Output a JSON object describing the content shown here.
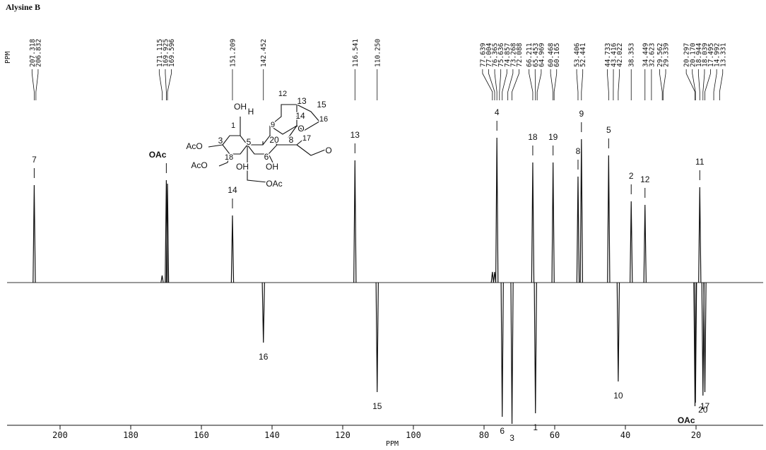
{
  "chart_data": {
    "type": "nmr-spectrum",
    "title": "Alysine B",
    "shift_header": "PPM",
    "xlabel": "PPM",
    "xlim": [
      215,
      1
    ],
    "xticks": [
      200,
      180,
      160,
      140,
      120,
      100,
      80,
      60,
      40,
      20
    ],
    "ylim": [
      -220,
      300
    ],
    "color": "#111111",
    "shift_labels": [
      207.318,
      206.832,
      171.115,
      169.925,
      169.596,
      151.209,
      142.452,
      116.541,
      {
        "value": 110.25,
        "label": "110.250"
      },
      77.639,
      77.004,
      76.365,
      75.636,
      74.857,
      73.268,
      72.088,
      66.211,
      65.453,
      64.969,
      60.468,
      60.165,
      53.406,
      52.441,
      44.733,
      43.416,
      42.022,
      38.353,
      34.449,
      32.623,
      29.562,
      29.339,
      20.297,
      {
        "value": 20.17,
        "label": "20.170"
      },
      18.944,
      18.039,
      17.495,
      14.992,
      13.331
    ],
    "x": [
      207.318,
      171.115,
      169.925,
      169.596,
      151.209,
      142.452,
      116.541,
      110.25,
      77.639,
      77.004,
      76.365,
      74.857,
      72.088,
      66.211,
      65.453,
      60.468,
      53.406,
      52.441,
      44.733,
      42.022,
      38.353,
      34.449,
      20.297,
      20.17,
      18.944,
      18.039,
      17.495
    ],
    "values": [
      138,
      10,
      145,
      140,
      95,
      -85,
      173,
      -155,
      15,
      15,
      205,
      -190,
      -200,
      170,
      -185,
      170,
      150,
      203,
      180,
      -140,
      115,
      110,
      -175,
      -170,
      135,
      -160,
      -155
    ],
    "peak_labels": [
      "7",
      null,
      "OAc",
      null,
      "14",
      "16",
      "13",
      "15",
      null,
      null,
      "4",
      "6",
      "3",
      "18",
      "1",
      "19",
      "8",
      "9",
      "5",
      "10",
      "2",
      "12",
      "OAc",
      null,
      "11",
      "20",
      "17"
    ],
    "structure": {
      "labels": [
        "OH",
        "1",
        "H",
        "9",
        "12",
        "13",
        "15",
        "14",
        "16",
        "O",
        "20",
        "8",
        "17",
        "O",
        "AcO",
        "3",
        "5",
        "6",
        "18",
        "AcO",
        "OH",
        "OH",
        "OAc"
      ]
    }
  }
}
